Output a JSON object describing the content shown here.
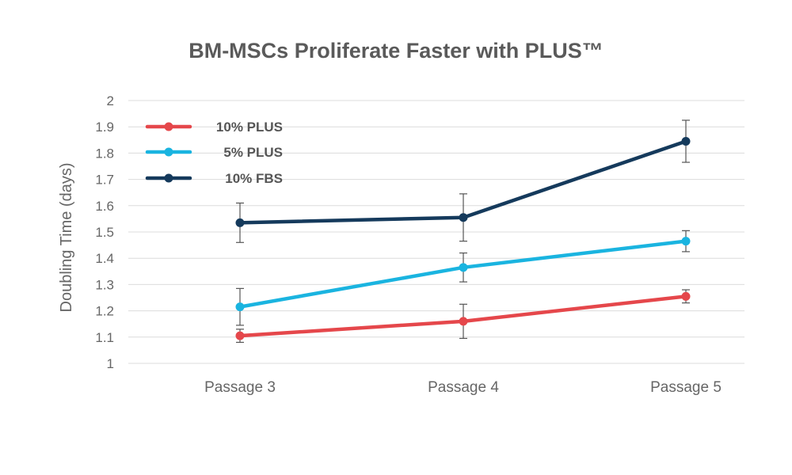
{
  "chart_data": {
    "type": "line",
    "title": "BM-MSCs Proliferate Faster with PLUS™",
    "xlabel": "",
    "ylabel": "Doubling Time (days)",
    "categories": [
      "Passage 3",
      "Passage 4",
      "Passage 5"
    ],
    "ylim": [
      1,
      2
    ],
    "yticks": [
      "1",
      "1.1",
      "1.2",
      "1.3",
      "1.4",
      "1.5",
      "1.6",
      "1.7",
      "1.8",
      "1.9",
      "2"
    ],
    "grid": true,
    "legend_position": "top-left",
    "series": [
      {
        "name": "10% PLUS",
        "color": "#e5474b",
        "values": [
          1.105,
          1.16,
          1.255
        ],
        "errors": [
          0.025,
          0.065,
          0.025
        ]
      },
      {
        "name": "5% PLUS",
        "color": "#1ab4e0",
        "values": [
          1.215,
          1.365,
          1.465
        ],
        "errors": [
          0.07,
          0.055,
          0.04
        ]
      },
      {
        "name": "10% FBS",
        "color": "#153a5c",
        "values": [
          1.535,
          1.555,
          1.845
        ],
        "errors": [
          0.075,
          0.09,
          0.08
        ]
      }
    ]
  }
}
